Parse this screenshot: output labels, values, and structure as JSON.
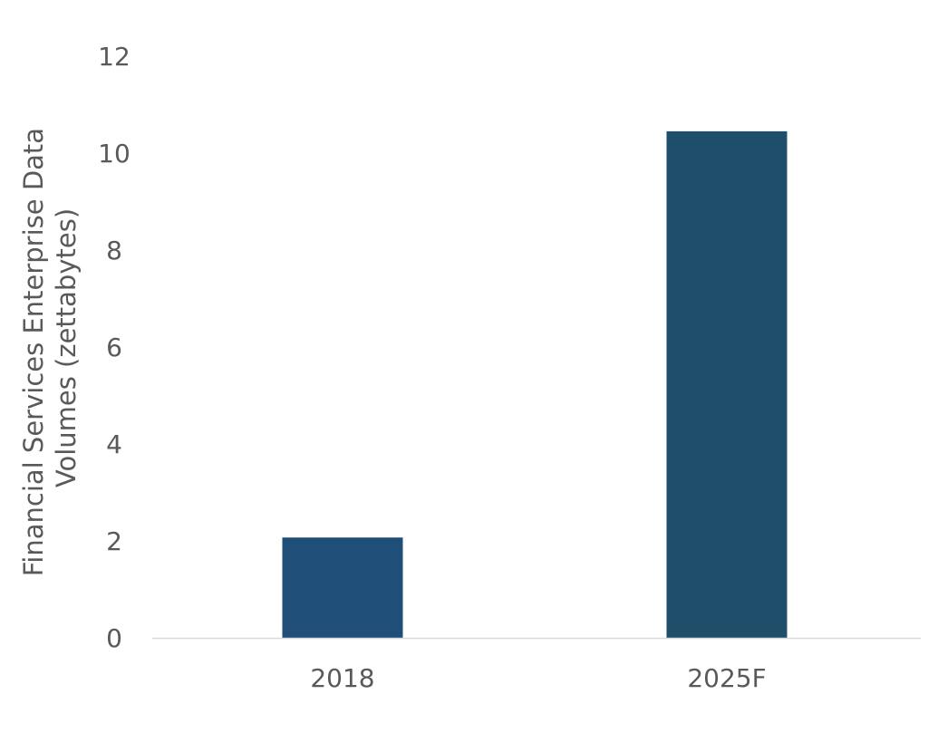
{
  "chart_data": {
    "type": "bar",
    "title": "",
    "xlabel": "",
    "ylabel_lines": [
      "Financial Services Enterprise Data",
      "Volumes (zettabytes)"
    ],
    "categories": [
      "2018",
      "2025F"
    ],
    "series": [
      {
        "values": [
          2.07,
          10.45
        ],
        "colors": [
          "#1f4e79",
          "#1f4e6b"
        ]
      }
    ],
    "ylim": [
      0,
      12
    ],
    "yticks": [
      0,
      2,
      4,
      6,
      8,
      10,
      12
    ],
    "grid": false,
    "legend": "none",
    "axis_color": "#d9d9d9",
    "text_color": "#595959"
  }
}
